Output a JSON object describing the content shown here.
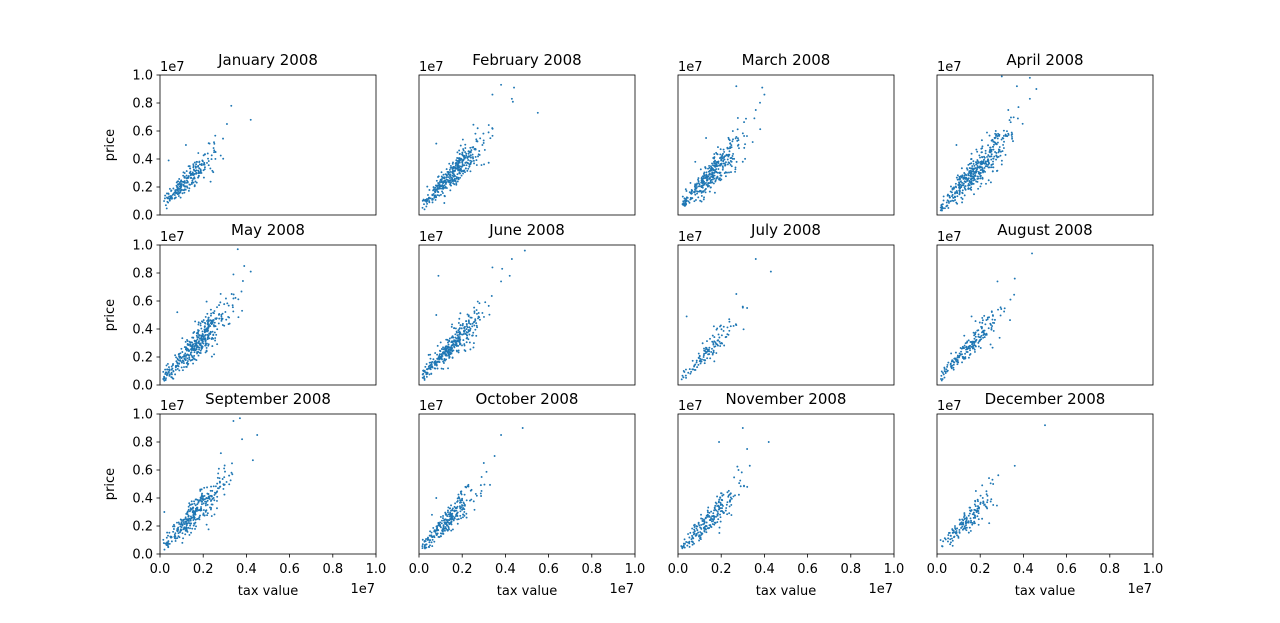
{
  "figure": {
    "x_multiplier": "1e7",
    "y_multiplier": "1e7",
    "xlabel": "tax value",
    "ylabel": "price",
    "tick_labels": [
      "0.0",
      "0.2",
      "0.4",
      "0.6",
      "0.8",
      "1.0"
    ]
  },
  "chart_data": [
    {
      "type": "scatter",
      "title": "January 2008",
      "xlim": [
        0,
        1.0
      ],
      "ylim": [
        0,
        1.0
      ],
      "xticks_visible": false,
      "yticks_visible": true,
      "ylabel": "price",
      "xlabel": "",
      "color": "#1f77b4",
      "center": [
        1.3,
        2.5
      ],
      "slope": 1.4,
      "n": 240,
      "spread": 0.4,
      "outliers": [
        [
          3.3,
          7.8
        ],
        [
          4.2,
          6.8
        ],
        [
          3.1,
          6.5
        ],
        [
          0.4,
          3.9
        ],
        [
          1.2,
          5.0
        ]
      ]
    },
    {
      "type": "scatter",
      "title": "February 2008",
      "xlim": [
        0,
        1.0
      ],
      "ylim": [
        0,
        1.0
      ],
      "xticks_visible": false,
      "yticks_visible": false,
      "ylabel": "",
      "xlabel": "",
      "color": "#1f77b4",
      "center": [
        1.6,
        3.0
      ],
      "slope": 1.6,
      "n": 380,
      "spread": 0.45,
      "outliers": [
        [
          3.8,
          9.3
        ],
        [
          4.4,
          9.1
        ],
        [
          5.5,
          7.3
        ],
        [
          4.3,
          8.3
        ],
        [
          3.4,
          8.6
        ],
        [
          0.8,
          5.1
        ]
      ]
    },
    {
      "type": "scatter",
      "title": "March 2008",
      "xlim": [
        0,
        1.0
      ],
      "ylim": [
        0,
        1.0
      ],
      "xticks_visible": false,
      "yticks_visible": false,
      "ylabel": "",
      "xlabel": "",
      "color": "#1f77b4",
      "center": [
        1.6,
        3.0
      ],
      "slope": 1.6,
      "n": 360,
      "spread": 0.5,
      "outliers": [
        [
          2.7,
          9.2
        ],
        [
          3.9,
          9.1
        ],
        [
          4.0,
          8.6
        ],
        [
          3.6,
          7.5
        ],
        [
          0.8,
          3.8
        ],
        [
          1.3,
          5.5
        ]
      ]
    },
    {
      "type": "scatter",
      "title": "April 2008",
      "xlim": [
        0,
        1.0
      ],
      "ylim": [
        0,
        1.0
      ],
      "xticks_visible": false,
      "yticks_visible": false,
      "ylabel": "",
      "xlabel": "",
      "color": "#1f77b4",
      "center": [
        1.8,
        3.2
      ],
      "slope": 1.6,
      "n": 420,
      "spread": 0.5,
      "outliers": [
        [
          3.0,
          9.9
        ],
        [
          3.7,
          9.2
        ],
        [
          4.3,
          9.8
        ],
        [
          4.6,
          9.0
        ],
        [
          4.3,
          8.3
        ],
        [
          3.3,
          7.5
        ],
        [
          0.9,
          5.0
        ],
        [
          1.6,
          4.0
        ]
      ]
    },
    {
      "type": "scatter",
      "title": "May 2008",
      "xlim": [
        0,
        1.0
      ],
      "ylim": [
        0,
        1.0
      ],
      "xticks_visible": false,
      "yticks_visible": true,
      "ylabel": "price",
      "xlabel": "",
      "color": "#1f77b4",
      "center": [
        1.7,
        3.0
      ],
      "slope": 1.6,
      "n": 420,
      "spread": 0.5,
      "outliers": [
        [
          3.6,
          9.7
        ],
        [
          3.9,
          8.5
        ],
        [
          4.2,
          8.1
        ],
        [
          3.4,
          7.9
        ],
        [
          0.8,
          5.2
        ],
        [
          3.8,
          5.3
        ]
      ]
    },
    {
      "type": "scatter",
      "title": "June 2008",
      "xlim": [
        0,
        1.0
      ],
      "ylim": [
        0,
        1.0
      ],
      "xticks_visible": false,
      "yticks_visible": false,
      "ylabel": "",
      "xlabel": "",
      "color": "#1f77b4",
      "center": [
        1.5,
        2.8
      ],
      "slope": 1.6,
      "n": 360,
      "spread": 0.45,
      "outliers": [
        [
          4.9,
          9.6
        ],
        [
          4.3,
          9.0
        ],
        [
          3.4,
          8.4
        ],
        [
          4.2,
          7.8
        ],
        [
          3.8,
          7.4
        ],
        [
          0.9,
          7.8
        ],
        [
          0.8,
          5.0
        ]
      ]
    },
    {
      "type": "scatter",
      "title": "July 2008",
      "xlim": [
        0,
        1.0
      ],
      "ylim": [
        0,
        1.0
      ],
      "xticks_visible": false,
      "yticks_visible": false,
      "ylabel": "",
      "xlabel": "",
      "color": "#1f77b4",
      "center": [
        1.4,
        2.4
      ],
      "slope": 1.5,
      "n": 120,
      "spread": 0.4,
      "outliers": [
        [
          3.6,
          9.0
        ],
        [
          4.3,
          8.1
        ],
        [
          2.7,
          6.5
        ],
        [
          3.2,
          5.5
        ],
        [
          3.0,
          5.6
        ],
        [
          0.4,
          4.9
        ]
      ]
    },
    {
      "type": "scatter",
      "title": "August 2008",
      "xlim": [
        0,
        1.0
      ],
      "ylim": [
        0,
        1.0
      ],
      "xticks_visible": false,
      "yticks_visible": false,
      "ylabel": "",
      "xlabel": "",
      "color": "#1f77b4",
      "center": [
        1.5,
        2.8
      ],
      "slope": 1.6,
      "n": 200,
      "spread": 0.4,
      "outliers": [
        [
          4.4,
          9.4
        ],
        [
          3.6,
          7.6
        ],
        [
          2.8,
          7.4
        ],
        [
          3.4,
          6.1
        ],
        [
          1.6,
          4.9
        ]
      ]
    },
    {
      "type": "scatter",
      "title": "September 2008",
      "xlim": [
        0,
        1.0
      ],
      "ylim": [
        0,
        1.0
      ],
      "xticks_visible": true,
      "yticks_visible": true,
      "ylabel": "price",
      "xlabel": "tax value",
      "color": "#1f77b4",
      "center": [
        1.6,
        2.9
      ],
      "slope": 1.6,
      "n": 320,
      "spread": 0.45,
      "outliers": [
        [
          3.7,
          9.7
        ],
        [
          3.4,
          9.5
        ],
        [
          4.5,
          8.5
        ],
        [
          3.8,
          8.2
        ],
        [
          4.3,
          6.7
        ],
        [
          0.2,
          3.0
        ],
        [
          0.9,
          1.2
        ]
      ]
    },
    {
      "type": "scatter",
      "title": "October 2008",
      "xlim": [
        0,
        1.0
      ],
      "ylim": [
        0,
        1.0
      ],
      "xticks_visible": true,
      "yticks_visible": false,
      "ylabel": "",
      "xlabel": "tax value",
      "color": "#1f77b4",
      "center": [
        1.4,
        2.5
      ],
      "slope": 1.6,
      "n": 260,
      "spread": 0.45,
      "outliers": [
        [
          4.8,
          9.0
        ],
        [
          3.8,
          8.5
        ],
        [
          3.5,
          7.0
        ],
        [
          3.0,
          6.5
        ],
        [
          0.6,
          2.8
        ],
        [
          0.8,
          4.0
        ]
      ]
    },
    {
      "type": "scatter",
      "title": "November 2008",
      "xlim": [
        0,
        1.0
      ],
      "ylim": [
        0,
        1.0
      ],
      "xticks_visible": true,
      "yticks_visible": false,
      "ylabel": "",
      "xlabel": "tax value",
      "color": "#1f77b4",
      "center": [
        1.4,
        2.4
      ],
      "slope": 1.6,
      "n": 220,
      "spread": 0.45,
      "outliers": [
        [
          3.0,
          9.0
        ],
        [
          1.9,
          8.0
        ],
        [
          4.2,
          8.0
        ],
        [
          3.2,
          7.5
        ],
        [
          2.8,
          6.0
        ]
      ]
    },
    {
      "type": "scatter",
      "title": "December 2008",
      "xlim": [
        0,
        1.0
      ],
      "ylim": [
        0,
        1.0
      ],
      "xticks_visible": true,
      "yticks_visible": false,
      "ylabel": "",
      "xlabel": "tax value",
      "color": "#1f77b4",
      "center": [
        1.4,
        2.4
      ],
      "slope": 1.5,
      "n": 160,
      "spread": 0.4,
      "outliers": [
        [
          5.0,
          9.2
        ],
        [
          3.6,
          6.3
        ],
        [
          2.6,
          5.0
        ],
        [
          1.8,
          4.5
        ]
      ]
    }
  ]
}
